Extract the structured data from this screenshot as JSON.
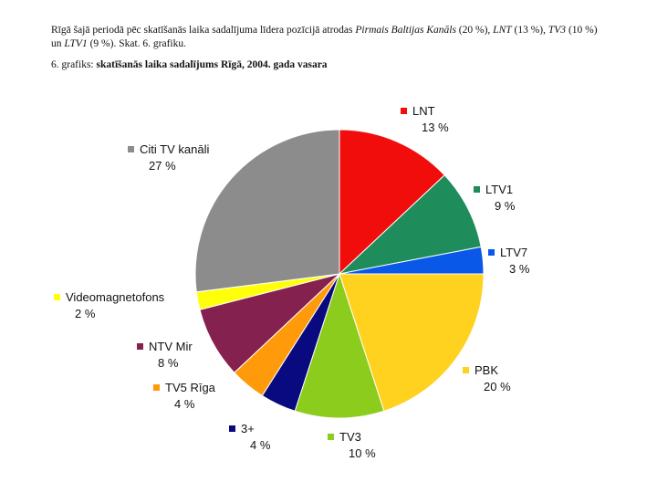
{
  "text": {
    "p_prefix": "Rīgā šajā periodā pēc skatīšanās laika sadalījuma līdera pozīcijā atrodas ",
    "p_pbk": "Pirmais Baltijas Kanāls",
    "p_pbk_pct": " (20 %), ",
    "p_lnt": "LNT",
    "p_lnt_pct": " (13 %), ",
    "p_tv3": "TV3",
    "p_tv3_pct": " (10 %)",
    "p_un": "un ",
    "p_ltv1": "LTV1",
    "p_suffix": " (9 %). Skat. 6. grafiku.",
    "caption_prefix": "6. grafiks: ",
    "caption_title": "skatīšanās laika sadalījums Rīgā, 2004. gada vasara"
  },
  "chart_data": {
    "type": "pie",
    "title": "skatīšanās laika sadalījums Rīgā, 2004. gada vasara",
    "slices": [
      {
        "name": "LNT",
        "label": "13 %",
        "value": 13,
        "color": "#f20d0d"
      },
      {
        "name": "LTV1",
        "label": "9 %",
        "value": 9,
        "color": "#1f8c5b"
      },
      {
        "name": "LTV7",
        "label": "3 %",
        "value": 3,
        "color": "#0a58e8"
      },
      {
        "name": "PBK",
        "label": "20 %",
        "value": 20,
        "color": "#ffd21f"
      },
      {
        "name": "TV3",
        "label": "10 %",
        "value": 10,
        "color": "#8ccc1c"
      },
      {
        "name": "3+",
        "label": "4 %",
        "value": 4,
        "color": "#0a0a80"
      },
      {
        "name": "TV5 Rīga",
        "label": "4 %",
        "value": 4,
        "color": "#ff9a0a"
      },
      {
        "name": "NTV Mir",
        "label": "8 %",
        "value": 8,
        "color": "#85214f"
      },
      {
        "name": "Videomagnetofons",
        "label": "2 %",
        "value": 2,
        "color": "#ffff0a"
      },
      {
        "name": "Citi TV kanāli",
        "label": "27 %",
        "value": 27,
        "color": "#8c8c8c"
      }
    ]
  }
}
